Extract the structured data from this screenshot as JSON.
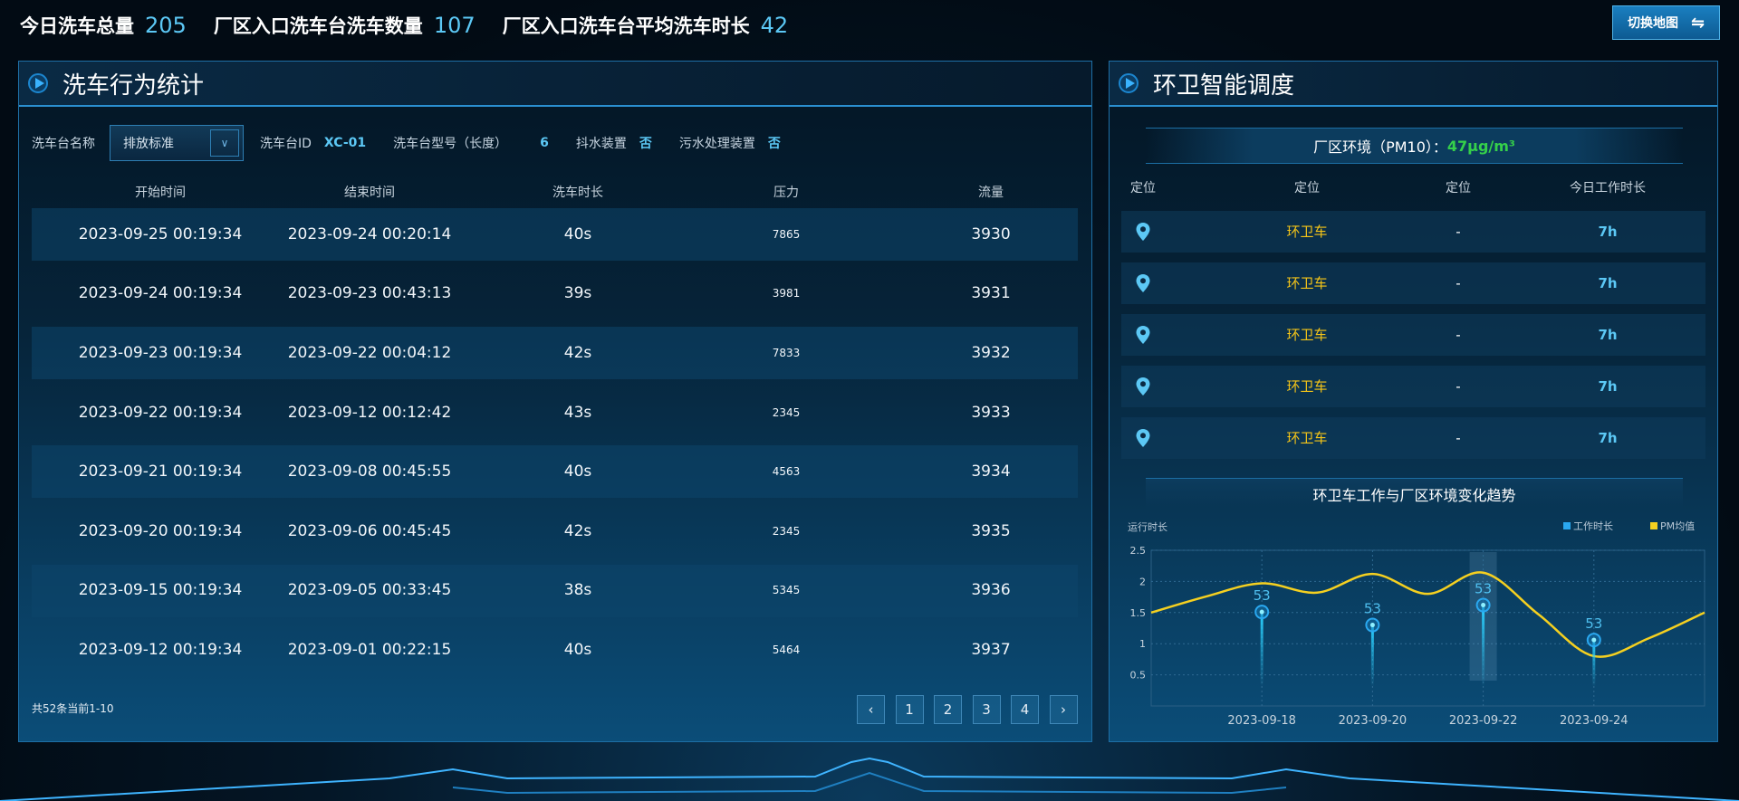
{
  "stats": [
    {
      "label": "今日洗车总量",
      "value": "205"
    },
    {
      "label": "厂区入口洗车台洗车数量",
      "value": "107"
    },
    {
      "label": "厂区入口洗车台平均洗车时长",
      "value": "42"
    }
  ],
  "switch_button": {
    "label": "切换地图",
    "icon": "swap-arrows-icon",
    "glyph": "⇋"
  },
  "left_panel": {
    "title": "洗车行为统计",
    "filter": {
      "name_label": "洗车台名称",
      "select_value": "排放标准",
      "id_label": "洗车台ID",
      "id_value": "XC-01",
      "model_label": "洗车台型号（长度）",
      "model_value": "6",
      "dewater_label": "抖水装置",
      "dewater_value": "否",
      "sewage_label": "污水处理装置",
      "sewage_value": "否"
    },
    "columns": [
      "开始时间",
      "结束时间",
      "洗车时长",
      "压力",
      "流量"
    ],
    "rows": [
      [
        "2023-09-25 00:19:34",
        "2023-09-24 00:20:14",
        "40s",
        "7865",
        "3930"
      ],
      [
        "2023-09-24 00:19:34",
        "2023-09-23 00:43:13",
        "39s",
        "3981",
        "3931"
      ],
      [
        "2023-09-23 00:19:34",
        "2023-09-22 00:04:12",
        "42s",
        "7833",
        "3932"
      ],
      [
        "2023-09-22 00:19:34",
        "2023-09-12 00:12:42",
        "43s",
        "2345",
        "3933"
      ],
      [
        "2023-09-21 00:19:34",
        "2023-09-08 00:45:55",
        "40s",
        "4563",
        "3934"
      ],
      [
        "2023-09-20 00:19:34",
        "2023-09-06 00:45:45",
        "42s",
        "2345",
        "3935"
      ],
      [
        "2023-09-15 00:19:34",
        "2023-09-05 00:33:45",
        "38s",
        "5345",
        "3936"
      ],
      [
        "2023-09-12 00:19:34",
        "2023-09-01 00:22:15",
        "40s",
        "5464",
        "3937"
      ]
    ],
    "footer": "共52条当前1-10",
    "pagination": {
      "prev": "‹",
      "pages": [
        "1",
        "2",
        "3",
        "4"
      ],
      "next": "›"
    }
  },
  "right_panel": {
    "title": "环卫智能调度",
    "pm_label": "厂区环境（PM10）：",
    "pm_value": "47μg/m³",
    "columns": [
      "定位",
      "定位",
      "定位",
      "今日工作时长"
    ],
    "rows": [
      {
        "icon": "location-pin-icon",
        "vehicle": "环卫车",
        "status": "-",
        "hours": "7h"
      },
      {
        "icon": "location-pin-icon",
        "vehicle": "环卫车",
        "status": "-",
        "hours": "7h"
      },
      {
        "icon": "location-pin-icon",
        "vehicle": "环卫车",
        "status": "-",
        "hours": "7h"
      },
      {
        "icon": "location-pin-icon",
        "vehicle": "环卫车",
        "status": "-",
        "hours": "7h"
      },
      {
        "icon": "location-pin-icon",
        "vehicle": "环卫车",
        "status": "-",
        "hours": "7h"
      }
    ],
    "chart_title": "环卫车工作与厂区环境变化趋势"
  },
  "colors": {
    "accent": "#5cc8f5",
    "vehicle": "#f5c518",
    "pm_good": "#35d04a",
    "work_series": "#2aa8f0",
    "pm_series": "#f5d020"
  },
  "chart_data": {
    "type": "line",
    "ylabel": "运行时长",
    "ylim": [
      0,
      2.5
    ],
    "yticks": [
      "0.5",
      "1",
      "1.5",
      "2",
      "2.5"
    ],
    "grid": true,
    "legend_placement": "top-right",
    "x": [
      "2023-09-16",
      "2023-09-17",
      "2023-09-18",
      "2023-09-19",
      "2023-09-20",
      "2023-09-21",
      "2023-09-22",
      "2023-09-23",
      "2023-09-24",
      "2023-09-25",
      "2023-09-26"
    ],
    "xtick_labels": [
      "2023-09-18",
      "2023-09-20",
      "2023-09-22",
      "2023-09-24"
    ],
    "highlighted_x": "2023-09-22",
    "series": [
      {
        "name": "工作时长",
        "type": "pin",
        "x": [
          "2023-09-18",
          "2023-09-20",
          "2023-09-22",
          "2023-09-24"
        ],
        "values": [
          1.51,
          1.3,
          1.62,
          1.06
        ],
        "labels": [
          "53",
          "53",
          "53",
          "53"
        ]
      },
      {
        "name": "PM均值",
        "type": "smooth-line",
        "values": [
          1.5,
          1.76,
          1.97,
          1.82,
          2.12,
          1.8,
          2.14,
          1.47,
          0.8,
          1.09,
          1.5
        ]
      }
    ]
  }
}
